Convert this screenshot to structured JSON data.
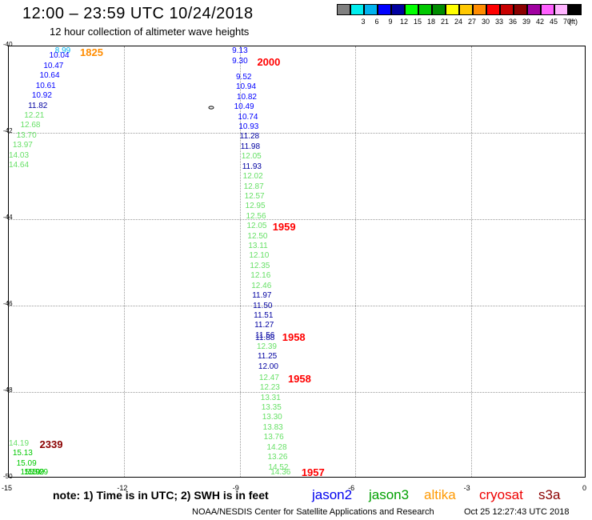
{
  "header": {
    "title": "12:00 – 23:59 UTC 10/24/2018",
    "subtitle": "12 hour collection of altimeter wave heights"
  },
  "color_scale": {
    "unit": "(ft)",
    "swatches": [
      {
        "label": "",
        "color": "#808080"
      },
      {
        "label": "3",
        "color": "#00eeee"
      },
      {
        "label": "6",
        "color": "#00b2ee"
      },
      {
        "label": "9",
        "color": "#0000ff"
      },
      {
        "label": "12",
        "color": "#0000a0"
      },
      {
        "label": "15",
        "color": "#00ff00"
      },
      {
        "label": "18",
        "color": "#00c800"
      },
      {
        "label": "21",
        "color": "#008c00"
      },
      {
        "label": "24",
        "color": "#ffff00"
      },
      {
        "label": "27",
        "color": "#ffc800"
      },
      {
        "label": "30",
        "color": "#ff8c00"
      },
      {
        "label": "33",
        "color": "#ff0000"
      },
      {
        "label": "36",
        "color": "#c80000"
      },
      {
        "label": "39",
        "color": "#8b0000"
      },
      {
        "label": "42",
        "color": "#a000a0"
      },
      {
        "label": "45",
        "color": "#ff60ff"
      },
      {
        "label": "70",
        "color": "#ffb4ff"
      },
      {
        "label": "",
        "color": "#000000"
      }
    ]
  },
  "map": {
    "lat_range": [
      -50,
      -40
    ],
    "lon_range": [
      -15,
      0
    ],
    "grid": true,
    "lat_ticks": [
      "-40",
      "-42",
      "-44",
      "-46",
      "-48",
      "-50"
    ],
    "lon_ticks": [
      "-15",
      "-12",
      "-9",
      "-6",
      "-3",
      "0"
    ]
  },
  "observations": [
    {
      "text": "8.99",
      "color": "#00b2ee",
      "x": -13.8,
      "y": -40.0
    },
    {
      "text": "10.04",
      "color": "#0000ff",
      "x": -13.95,
      "y": -40.23
    },
    {
      "text": "10.47",
      "color": "#0000ff",
      "x": -14.1,
      "y": -40.46
    },
    {
      "text": "10.64",
      "color": "#0000ff",
      "x": -14.2,
      "y": -40.69
    },
    {
      "text": "10.61",
      "color": "#0000ff",
      "x": -14.3,
      "y": -40.92
    },
    {
      "text": "10.92",
      "color": "#0000ff",
      "x": -14.4,
      "y": -41.15
    },
    {
      "text": "11.82",
      "color": "#0000a0",
      "x": -14.5,
      "y": -41.38
    },
    {
      "text": "12.21",
      "color": "#66e066",
      "x": -14.6,
      "y": -41.61
    },
    {
      "text": "12.68",
      "color": "#66e066",
      "x": -14.7,
      "y": -41.84
    },
    {
      "text": "13.70",
      "color": "#66e066",
      "x": -14.8,
      "y": -42.07
    },
    {
      "text": "13.97",
      "color": "#66e066",
      "x": -14.9,
      "y": -42.3
    },
    {
      "text": "14.03",
      "color": "#66e066",
      "x": -15.0,
      "y": -42.53
    },
    {
      "text": "14.64",
      "color": "#66e066",
      "x": -15.1,
      "y": -42.76
    },
    {
      "text": "9.13",
      "color": "#0000ff",
      "x": -9.2,
      "y": -40.12
    },
    {
      "text": "9.30",
      "color": "#0000ff",
      "x": -9.2,
      "y": -40.35
    },
    {
      "text": "9.52",
      "color": "#0000ff",
      "x": -9.1,
      "y": -40.72
    },
    {
      "text": "10.94",
      "color": "#0000ff",
      "x": -9.1,
      "y": -40.95
    },
    {
      "text": "10.82",
      "color": "#0000ff",
      "x": -9.08,
      "y": -41.18
    },
    {
      "text": "10.49",
      "color": "#0000ff",
      "x": -9.15,
      "y": -41.41
    },
    {
      "text": "10.74",
      "color": "#0000ff",
      "x": -9.05,
      "y": -41.64
    },
    {
      "text": "10.93",
      "color": "#0000ff",
      "x": -9.03,
      "y": -41.87
    },
    {
      "text": "11.28",
      "color": "#0000a0",
      "x": -9.0,
      "y": -42.1
    },
    {
      "text": "11.98",
      "color": "#0000a0",
      "x": -8.98,
      "y": -42.33
    },
    {
      "text": "12.05",
      "color": "#66e066",
      "x": -8.96,
      "y": -42.56
    },
    {
      "text": "11.93",
      "color": "#0000a0",
      "x": -8.94,
      "y": -42.79
    },
    {
      "text": "12.02",
      "color": "#66e066",
      "x": -8.92,
      "y": -43.02
    },
    {
      "text": "12.87",
      "color": "#66e066",
      "x": -8.9,
      "y": -43.25
    },
    {
      "text": "12.57",
      "color": "#66e066",
      "x": -8.88,
      "y": -43.48
    },
    {
      "text": "12.95",
      "color": "#66e066",
      "x": -8.86,
      "y": -43.71
    },
    {
      "text": "12.56",
      "color": "#66e066",
      "x": -8.84,
      "y": -43.94
    },
    {
      "text": "12.05",
      "color": "#66e066",
      "x": -8.82,
      "y": -44.17
    },
    {
      "text": "12.50",
      "color": "#66e066",
      "x": -8.8,
      "y": -44.4
    },
    {
      "text": "13.11",
      "color": "#66e066",
      "x": -8.78,
      "y": -44.63
    },
    {
      "text": "12.10",
      "color": "#66e066",
      "x": -8.76,
      "y": -44.86
    },
    {
      "text": "12.35",
      "color": "#66e066",
      "x": -8.74,
      "y": -45.09
    },
    {
      "text": "12.16",
      "color": "#66e066",
      "x": -8.72,
      "y": -45.32
    },
    {
      "text": "12.46",
      "color": "#66e066",
      "x": -8.7,
      "y": -45.55
    },
    {
      "text": "11.97",
      "color": "#0000a0",
      "x": -8.68,
      "y": -45.78
    },
    {
      "text": "11.50",
      "color": "#0000a0",
      "x": -8.66,
      "y": -46.01
    },
    {
      "text": "11.51",
      "color": "#0000a0",
      "x": -8.64,
      "y": -46.24
    },
    {
      "text": "11.27",
      "color": "#0000a0",
      "x": -8.62,
      "y": -46.47
    },
    {
      "text": "11.56",
      "color": "#0000a0",
      "x": -8.6,
      "y": -46.7
    },
    {
      "text": "11.88",
      "color": "#0000a0",
      "x": -8.6,
      "y": -46.75
    },
    {
      "text": "12.39",
      "color": "#66e066",
      "x": -8.56,
      "y": -46.96
    },
    {
      "text": "11.25",
      "color": "#0000a0",
      "x": -8.54,
      "y": -47.19
    },
    {
      "text": "12.00",
      "color": "#0000a0",
      "x": -8.52,
      "y": -47.42
    },
    {
      "text": "12.47",
      "color": "#66e066",
      "x": -8.5,
      "y": -47.68
    },
    {
      "text": "12.23",
      "color": "#66e066",
      "x": -8.48,
      "y": -47.91
    },
    {
      "text": "13.31",
      "color": "#66e066",
      "x": -8.46,
      "y": -48.14
    },
    {
      "text": "13.35",
      "color": "#66e066",
      "x": -8.44,
      "y": -48.37
    },
    {
      "text": "13.30",
      "color": "#66e066",
      "x": -8.42,
      "y": -48.6
    },
    {
      "text": "13.83",
      "color": "#66e066",
      "x": -8.4,
      "y": -48.83
    },
    {
      "text": "13.76",
      "color": "#66e066",
      "x": -8.38,
      "y": -49.06
    },
    {
      "text": "14.28",
      "color": "#66e066",
      "x": -8.3,
      "y": -49.29
    },
    {
      "text": "13.26",
      "color": "#66e066",
      "x": -8.28,
      "y": -49.52
    },
    {
      "text": "14.52",
      "color": "#66e066",
      "x": -8.26,
      "y": -49.75
    },
    {
      "text": "14.36",
      "color": "#66e066",
      "x": -8.2,
      "y": -49.98
    },
    {
      "text": "14.19",
      "color": "#66e066",
      "x": -15.0,
      "y": -49.2
    },
    {
      "text": "15.13",
      "color": "#00c800",
      "x": -14.9,
      "y": -49.43
    },
    {
      "text": "15.09",
      "color": "#00c800",
      "x": -14.8,
      "y": -49.66
    },
    {
      "text": "15.19",
      "color": "#00c800",
      "x": -14.7,
      "y": -49.89
    },
    {
      "text": "15.99",
      "color": "#00c800",
      "x": -14.6,
      "y": -50.12
    },
    {
      "text": "15.29",
      "color": "#00c800",
      "x": -14.5,
      "y": -50.35
    }
  ],
  "pass_labels": [
    {
      "text": "1825",
      "color": "#ff8c00",
      "x": -13.15,
      "y": -40.0
    },
    {
      "text": "2000",
      "color": "#ff0000",
      "x": -8.55,
      "y": -40.35
    },
    {
      "text": "1959",
      "color": "#ff0000",
      "x": -8.15,
      "y": -44.17
    },
    {
      "text": "1958",
      "color": "#ff0000",
      "x": -7.9,
      "y": -46.72
    },
    {
      "text": "1958",
      "color": "#ff0000",
      "x": -7.75,
      "y": -47.68
    },
    {
      "text": "2339",
      "color": "#8b0000",
      "x": -14.2,
      "y": -49.2
    },
    {
      "text": "1957",
      "color": "#ff0000",
      "x": -7.4,
      "y": -50.05
    }
  ],
  "note": "note:  1) Time is in UTC;  2) SWH is in feet",
  "legend": [
    {
      "label": "jason2",
      "color": "#0000ee"
    },
    {
      "label": "jason3",
      "color": "#00a000"
    },
    {
      "label": "altika",
      "color": "#ff9900"
    },
    {
      "label": "cryosat",
      "color": "#ee0000"
    },
    {
      "label": "s3a",
      "color": "#8b0000"
    }
  ],
  "footer": {
    "credit": "NOAA/NESDIS Center for Satellite Applications and Research",
    "timestamp": "Oct 25 12:27:43 UTC 2018"
  }
}
